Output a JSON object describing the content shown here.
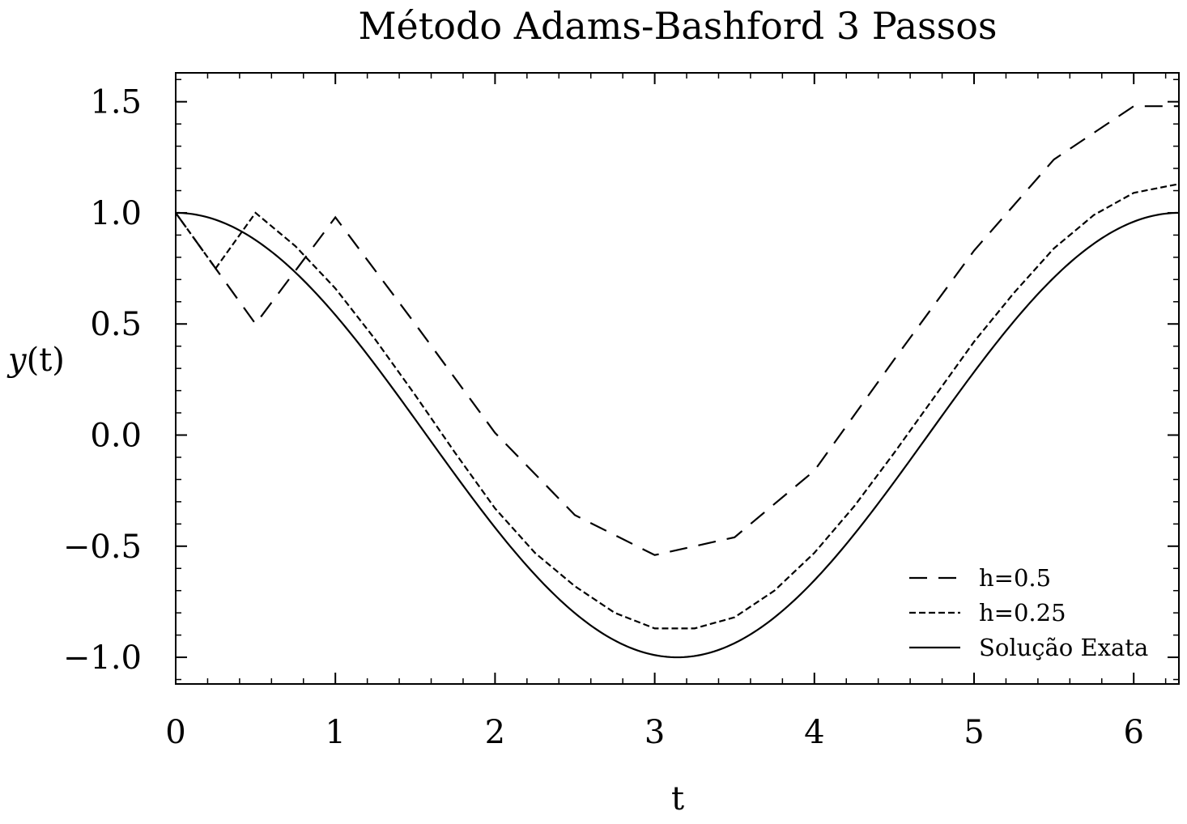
{
  "chart_data": {
    "type": "line",
    "title": "Método Adams-Bashford 3 Passos",
    "xlabel": "t",
    "ylabel_italic": "y",
    "ylabel_rest": "(t)",
    "xlim": [
      0,
      6.283
    ],
    "ylim": [
      -1.12,
      1.63
    ],
    "xticks": [
      0,
      1,
      2,
      3,
      4,
      5,
      6
    ],
    "xtick_labels": [
      "0",
      "1",
      "2",
      "3",
      "4",
      "5",
      "6"
    ],
    "yticks": [
      -1.0,
      -0.5,
      0.0,
      0.5,
      1.0,
      1.5
    ],
    "ytick_labels": [
      "−1.0",
      "−0.5",
      "0.0",
      "0.5",
      "1.0",
      "1.5"
    ],
    "legend_position": "lower-right",
    "series": [
      {
        "name": "h=0.5",
        "style": "dashed",
        "x": [
          0,
          0.5,
          1.0,
          1.5,
          2.0,
          2.5,
          3.0,
          3.5,
          4.0,
          4.5,
          5.0,
          5.5,
          6.0,
          6.283
        ],
        "y": [
          1.0,
          0.5,
          0.98,
          0.5,
          0.01,
          -0.36,
          -0.54,
          -0.46,
          -0.16,
          0.34,
          0.83,
          1.24,
          1.48,
          1.48
        ]
      },
      {
        "name": "h=0.25",
        "style": "dotted",
        "x": [
          0,
          0.25,
          0.5,
          0.75,
          1.0,
          1.25,
          1.5,
          1.75,
          2.0,
          2.25,
          2.5,
          2.75,
          3.0,
          3.25,
          3.5,
          3.75,
          4.0,
          4.25,
          4.5,
          4.75,
          5.0,
          5.25,
          5.5,
          5.75,
          6.0,
          6.283
        ],
        "y": [
          1.0,
          0.75,
          1.0,
          0.85,
          0.66,
          0.43,
          0.18,
          -0.08,
          -0.33,
          -0.53,
          -0.68,
          -0.8,
          -0.87,
          -0.87,
          -0.82,
          -0.7,
          -0.53,
          -0.32,
          -0.08,
          0.17,
          0.42,
          0.64,
          0.84,
          0.99,
          1.09,
          1.13
        ]
      },
      {
        "name": "Solução Exata",
        "style": "solid",
        "function": "cos",
        "x_range": [
          0,
          6.283
        ]
      }
    ]
  }
}
